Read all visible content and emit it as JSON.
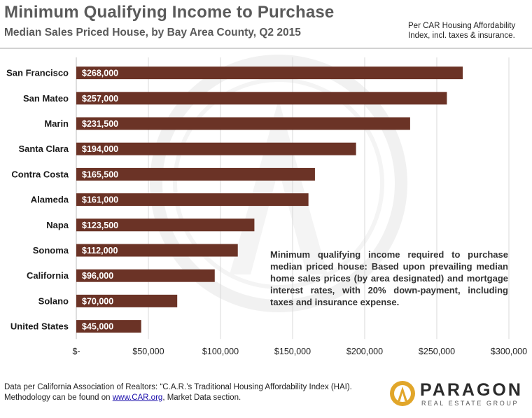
{
  "header": {
    "title": "Minimum Qualifying Income to Purchase",
    "subtitle": "Median Sales Priced House, by Bay Area County, Q2 2015",
    "note": "Per CAR Housing Affordability Index, incl. taxes & insurance."
  },
  "annotation": "Minimum qualifying income required to purchase median priced house: Based upon prevailing median home sales prices (by area designated) and mortgage interest rates, with 20% down-payment, including taxes and insurance expense.",
  "footer": {
    "line1": "Data per California Association of Realtors: “C.A.R.’s Traditional Housing Affordability Index (HAI).",
    "line2_prefix": "Methodology can be found on ",
    "link": "www.CAR.org",
    "line2_suffix": ", Market Data section."
  },
  "logo": {
    "name": "PARAGON",
    "tagline": "REAL ESTATE GROUP"
  },
  "colors": {
    "bar": "#6b3326",
    "bar_label": "#ffffff",
    "grid": "#d9d9d9",
    "logo_gold": "#e1a62a"
  },
  "chart_data": {
    "type": "bar",
    "orientation": "horizontal",
    "categories": [
      "San Francisco",
      "San Mateo",
      "Marin",
      "Santa Clara",
      "Contra Costa",
      "Alameda",
      "Napa",
      "Sonoma",
      "California",
      "Solano",
      "United States"
    ],
    "values": [
      268000,
      257000,
      231500,
      194000,
      165500,
      161000,
      123500,
      112000,
      96000,
      70000,
      45000
    ],
    "data_labels": [
      "$268,000",
      "$257,000",
      "$231,500",
      "$194,000",
      "$165,500",
      "$161,000",
      "$123,500",
      "$112,000",
      "$96,000",
      "$70,000",
      "$45,000"
    ],
    "xlim": [
      0,
      300000
    ],
    "xticks": [
      0,
      50000,
      100000,
      150000,
      200000,
      250000,
      300000
    ],
    "xtick_labels": [
      "$-",
      "$50,000",
      "$100,000",
      "$150,000",
      "$200,000",
      "$250,000",
      "$300,000"
    ],
    "grid": true
  }
}
